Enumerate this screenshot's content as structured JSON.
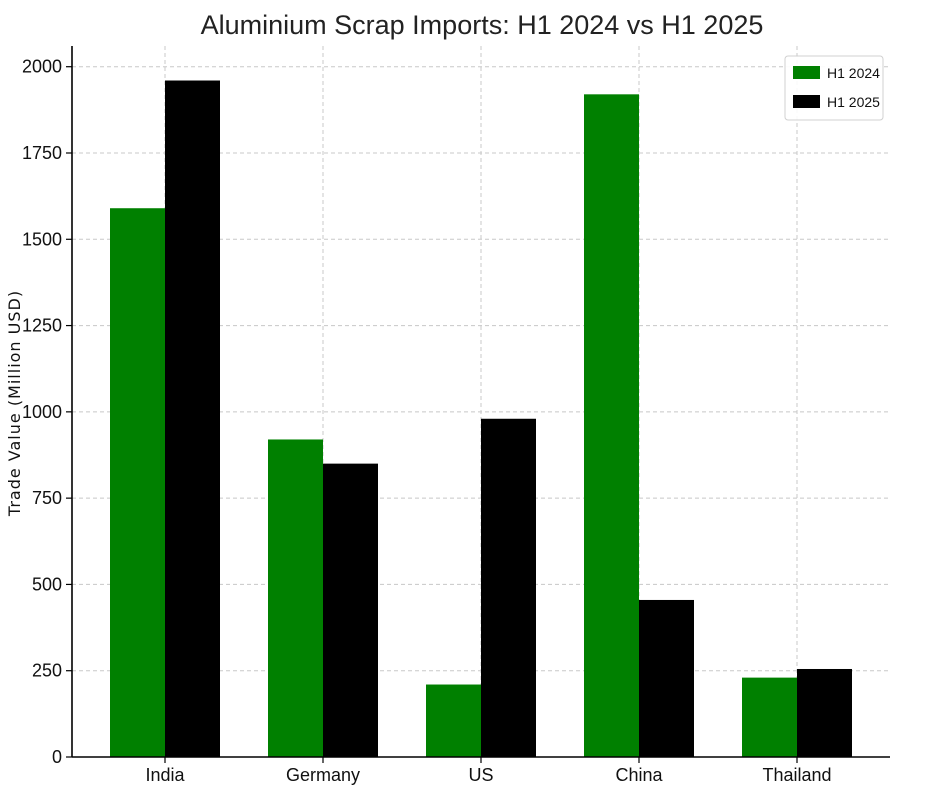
{
  "chart_data": {
    "type": "bar",
    "title": "Aluminium Scrap Imports: H1 2024 vs H1 2025",
    "xlabel": "",
    "ylabel": "Trade Value (Million USD)",
    "categories": [
      "India",
      "Germany",
      "US",
      "China",
      "Thailand"
    ],
    "series": [
      {
        "name": "H1 2024",
        "color": "#008000",
        "values": [
          1590,
          920,
          210,
          1920,
          230
        ]
      },
      {
        "name": "H1 2025",
        "color": "#000000",
        "values": [
          1960,
          850,
          980,
          455,
          255
        ]
      }
    ],
    "ylim": [
      0,
      2060
    ],
    "yticks": [
      0,
      250,
      500,
      750,
      1000,
      1250,
      1500,
      1750,
      2000
    ],
    "grid": true,
    "legend_position": "top-right"
  }
}
